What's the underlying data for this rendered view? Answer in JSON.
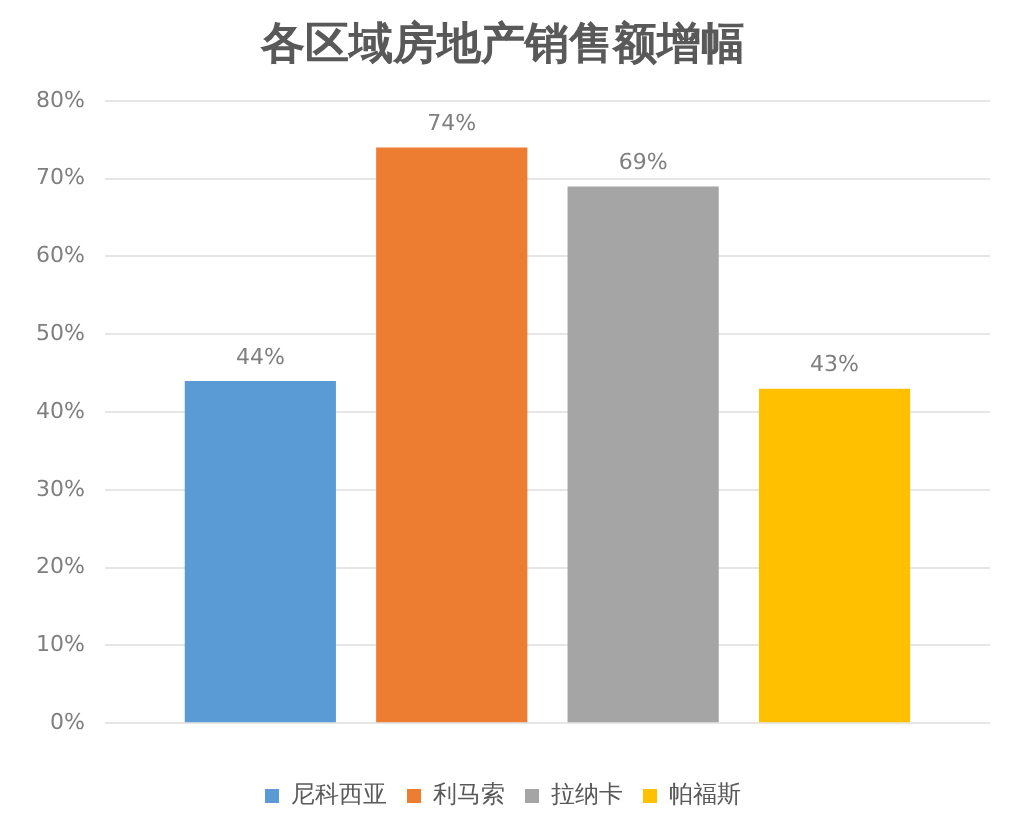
{
  "chart_data": {
    "type": "bar",
    "title": "各区域房地产销售额增幅",
    "categories": [
      null
    ],
    "series": [
      {
        "name": "尼科西亚",
        "color": "#5b9bd5",
        "values": [
          44
        ],
        "value_labels": [
          "44%"
        ]
      },
      {
        "name": "利马索",
        "color": "#ed7d31",
        "values": [
          74
        ],
        "value_labels": [
          "74%"
        ]
      },
      {
        "name": "拉纳卡",
        "color": "#a5a5a5",
        "values": [
          69
        ],
        "value_labels": [
          "69%"
        ]
      },
      {
        "name": "帕福斯",
        "color": "#ffc000",
        "values": [
          43
        ],
        "value_labels": [
          "43%"
        ]
      }
    ],
    "ylim": [
      0,
      80
    ],
    "yticks": [
      {
        "value": 0,
        "label": "0%"
      },
      {
        "value": 10,
        "label": "10%"
      },
      {
        "value": 20,
        "label": "20%"
      },
      {
        "value": 30,
        "label": "30%"
      },
      {
        "value": 40,
        "label": "40%"
      },
      {
        "value": 50,
        "label": "50%"
      },
      {
        "value": 60,
        "label": "60%"
      },
      {
        "value": 70,
        "label": "70%"
      },
      {
        "value": 80,
        "label": "80%"
      }
    ],
    "grid": "y",
    "legend": "bottom"
  }
}
